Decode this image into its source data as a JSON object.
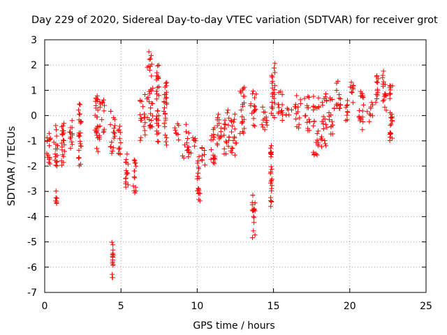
{
  "chart_data": {
    "type": "scatter",
    "title": "Day 229 of 2020, Sidereal Day-to-day VTEC variation (SDTVAR) for receiver grot",
    "xlabel": "GPS time / hours",
    "ylabel": "SDTVAR / TECUs",
    "xlim": [
      0,
      25
    ],
    "ylim": [
      -7,
      3
    ],
    "xticks": [
      0,
      5,
      10,
      15,
      20,
      25
    ],
    "yticks": [
      -7,
      -6,
      -5,
      -4,
      -3,
      -2,
      -1,
      0,
      1,
      2,
      3
    ],
    "grid": true,
    "marker": "+",
    "series": [
      {
        "name": "SDTVAR",
        "color": "#ff0000",
        "clusters": [
          {
            "x": [
              0.1,
              0.4
            ],
            "y": [
              -2.2,
              -0.7
            ]
          },
          {
            "x": [
              0.7,
              0.8
            ],
            "y": [
              -3.6,
              -2.9
            ]
          },
          {
            "x": [
              0.6,
              0.9
            ],
            "y": [
              -2.0,
              -0.3
            ]
          },
          {
            "x": [
              1.1,
              1.3
            ],
            "y": [
              -2.5,
              -0.3
            ]
          },
          {
            "x": [
              1.6,
              1.9
            ],
            "y": [
              -1.3,
              -0.1
            ]
          },
          {
            "x": [
              2.2,
              2.4
            ],
            "y": [
              -2.0,
              0.5
            ]
          },
          {
            "x": [
              3.3,
              3.5
            ],
            "y": [
              -1.5,
              0.8
            ]
          },
          {
            "x": [
              3.5,
              4.0
            ],
            "y": [
              -1.0,
              0.7
            ]
          },
          {
            "x": [
              4.4,
              4.5
            ],
            "y": [
              -6.6,
              -5.0
            ]
          },
          {
            "x": [
              4.3,
              4.6
            ],
            "y": [
              -1.5,
              0.2
            ]
          },
          {
            "x": [
              4.8,
              5.0
            ],
            "y": [
              -1.6,
              -0.4
            ]
          },
          {
            "x": [
              5.3,
              5.5
            ],
            "y": [
              -2.9,
              -1.4
            ]
          },
          {
            "x": [
              5.8,
              6.0
            ],
            "y": [
              -3.1,
              -1.7
            ]
          },
          {
            "x": [
              6.2,
              6.6
            ],
            "y": [
              -1.0,
              0.9
            ]
          },
          {
            "x": [
              6.7,
              7.1
            ],
            "y": [
              -0.5,
              2.6
            ]
          },
          {
            "x": [
              7.3,
              7.5
            ],
            "y": [
              -1.1,
              2.0
            ]
          },
          {
            "x": [
              7.8,
              8.0
            ],
            "y": [
              -1.2,
              1.4
            ]
          },
          {
            "x": [
              8.5,
              8.8
            ],
            "y": [
              -1.0,
              -0.2
            ]
          },
          {
            "x": [
              9.0,
              9.5
            ],
            "y": [
              -1.8,
              -0.3
            ]
          },
          {
            "x": [
              9.5,
              9.9
            ],
            "y": [
              -1.5,
              -0.8
            ]
          },
          {
            "x": [
              10.0,
              10.2
            ],
            "y": [
              -3.4,
              -1.5
            ]
          },
          {
            "x": [
              10.3,
              10.6
            ],
            "y": [
              -2.0,
              -1.2
            ]
          },
          {
            "x": [
              10.9,
              11.2
            ],
            "y": [
              -1.9,
              -0.3
            ]
          },
          {
            "x": [
              11.3,
              11.6
            ],
            "y": [
              -1.2,
              0.2
            ]
          },
          {
            "x": [
              11.7,
              12.1
            ],
            "y": [
              -1.6,
              0.3
            ]
          },
          {
            "x": [
              12.2,
              12.6
            ],
            "y": [
              -1.6,
              0.2
            ]
          },
          {
            "x": [
              12.8,
              13.1
            ],
            "y": [
              -0.8,
              1.2
            ]
          },
          {
            "x": [
              13.6,
              13.8
            ],
            "y": [
              -4.9,
              -3.1
            ]
          },
          {
            "x": [
              13.5,
              13.9
            ],
            "y": [
              -0.5,
              1.1
            ]
          },
          {
            "x": [
              14.2,
              14.6
            ],
            "y": [
              -0.8,
              0.4
            ]
          },
          {
            "x": [
              14.8,
              14.9
            ],
            "y": [
              -3.6,
              -1.1
            ]
          },
          {
            "x": [
              14.8,
              15.1
            ],
            "y": [
              -0.2,
              2.2
            ]
          },
          {
            "x": [
              15.3,
              15.6
            ],
            "y": [
              -0.3,
              1.1
            ]
          },
          {
            "x": [
              15.8,
              16.2
            ],
            "y": [
              0.0,
              0.3
            ]
          },
          {
            "x": [
              16.4,
              16.8
            ],
            "y": [
              -0.5,
              0.9
            ]
          },
          {
            "x": [
              17.0,
              17.4
            ],
            "y": [
              -0.6,
              0.8
            ]
          },
          {
            "x": [
              17.6,
              18.0
            ],
            "y": [
              -1.6,
              0.9
            ]
          },
          {
            "x": [
              18.1,
              18.5
            ],
            "y": [
              -1.3,
              0.9
            ]
          },
          {
            "x": [
              18.6,
              19.0
            ],
            "y": [
              -0.9,
              0.7
            ]
          },
          {
            "x": [
              19.1,
              19.4
            ],
            "y": [
              0.2,
              1.5
            ]
          },
          {
            "x": [
              19.6,
              19.9
            ],
            "y": [
              -0.2,
              0.7
            ]
          },
          {
            "x": [
              20.0,
              20.3
            ],
            "y": [
              0.5,
              1.4
            ]
          },
          {
            "x": [
              20.6,
              20.9
            ],
            "y": [
              -0.6,
              1.2
            ]
          },
          {
            "x": [
              21.1,
              21.5
            ],
            "y": [
              -0.3,
              0.6
            ]
          },
          {
            "x": [
              21.7,
              21.9
            ],
            "y": [
              0.5,
              1.7
            ]
          },
          {
            "x": [
              22.1,
              22.4
            ],
            "y": [
              0.2,
              1.9
            ]
          },
          {
            "x": [
              22.6,
              22.8
            ],
            "y": [
              -1.0,
              1.5
            ]
          }
        ]
      }
    ]
  }
}
